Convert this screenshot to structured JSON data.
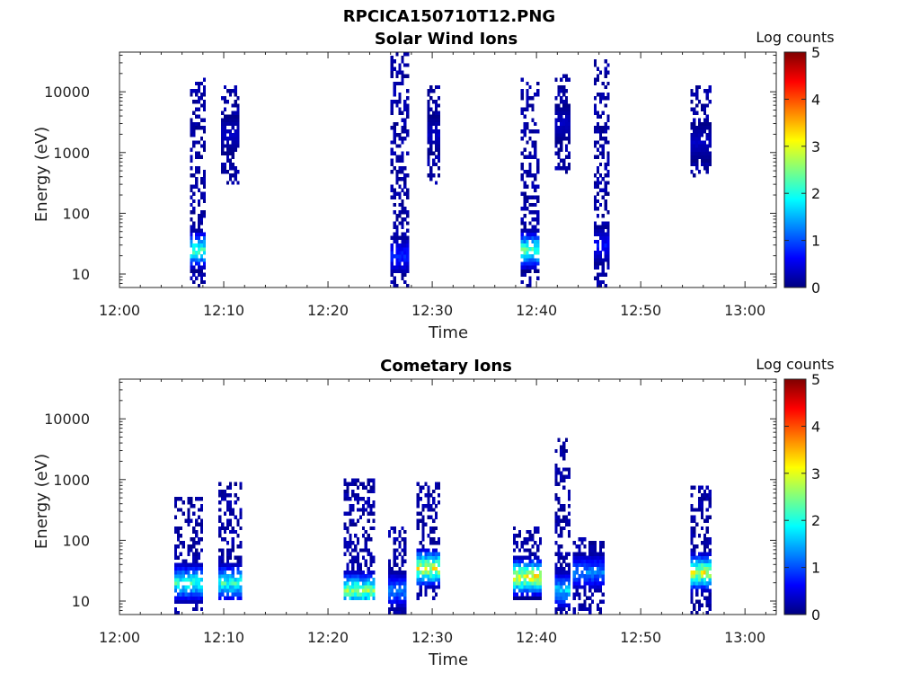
{
  "figure_title": "RPCICA150710T12.PNG",
  "colorbar": {
    "label": "Log counts",
    "min": 0,
    "max": 5,
    "ticks": [
      "0",
      "1",
      "2",
      "3",
      "4",
      "5"
    ],
    "colormap": "jet"
  },
  "chart_data": [
    {
      "type": "heatmap",
      "title": "Solar Wind Ions",
      "xlabel": "Time",
      "ylabel": "Energy (eV)",
      "y_scale": "log",
      "ylim": [
        6,
        45000
      ],
      "xlim": [
        "12:00",
        "13:03"
      ],
      "x_ticks": [
        "12:00",
        "12:10",
        "12:20",
        "12:30",
        "12:40",
        "12:50",
        "13:00"
      ],
      "y_ticks": [
        "10",
        "100",
        "1000",
        "10000"
      ],
      "bursts": [
        {
          "start": "12:06:45",
          "end": "12:08:15",
          "emin": 6,
          "emax": 16000,
          "peak_log_counts": 2.6,
          "peak_energy": 25
        },
        {
          "start": "12:09:45",
          "end": "12:11:30",
          "emin": 300,
          "emax": 12000,
          "peak_log_counts": 0.4,
          "peak_energy": 2000
        },
        {
          "start": "12:26:00",
          "end": "12:27:45",
          "emin": 6,
          "emax": 40000,
          "peak_log_counts": 1.0,
          "peak_energy": 20
        },
        {
          "start": "12:29:30",
          "end": "12:30:45",
          "emin": 300,
          "emax": 12000,
          "peak_log_counts": 0.4,
          "peak_energy": 2000
        },
        {
          "start": "12:38:30",
          "end": "12:40:15",
          "emin": 6,
          "emax": 16000,
          "peak_log_counts": 2.7,
          "peak_energy": 25
        },
        {
          "start": "12:41:45",
          "end": "12:43:15",
          "emin": 500,
          "emax": 18000,
          "peak_log_counts": 0.4,
          "peak_energy": 3000
        },
        {
          "start": "12:45:30",
          "end": "12:47:00",
          "emin": 6,
          "emax": 30000,
          "peak_log_counts": 0.8,
          "peak_energy": 30
        },
        {
          "start": "12:54:45",
          "end": "12:56:45",
          "emin": 400,
          "emax": 12000,
          "peak_log_counts": 0.4,
          "peak_energy": 1500
        }
      ]
    },
    {
      "type": "heatmap",
      "title": "Cometary Ions",
      "xlabel": "Time",
      "ylabel": "Energy (eV)",
      "y_scale": "log",
      "ylim": [
        6,
        45000
      ],
      "xlim": [
        "12:00",
        "13:03"
      ],
      "x_ticks": [
        "12:00",
        "12:10",
        "12:20",
        "12:30",
        "12:40",
        "12:50",
        "13:00"
      ],
      "y_ticks": [
        "10",
        "100",
        "1000",
        "10000"
      ],
      "bursts": [
        {
          "start": "12:05:15",
          "end": "12:08:00",
          "emin": 6,
          "emax": 500,
          "peak_log_counts": 2.5,
          "peak_energy": 20
        },
        {
          "start": "12:09:30",
          "end": "12:11:45",
          "emin": 12,
          "emax": 800,
          "peak_log_counts": 2.5,
          "peak_energy": 20
        },
        {
          "start": "12:21:30",
          "end": "12:24:30",
          "emin": 12,
          "emax": 1000,
          "peak_log_counts": 3.0,
          "peak_energy": 15
        },
        {
          "start": "12:25:45",
          "end": "12:27:30",
          "emin": 6,
          "emax": 150,
          "peak_log_counts": 1.5,
          "peak_energy": 15
        },
        {
          "start": "12:28:30",
          "end": "12:30:45",
          "emin": 12,
          "emax": 800,
          "peak_log_counts": 3.5,
          "peak_energy": 35
        },
        {
          "start": "12:37:45",
          "end": "12:40:30",
          "emin": 12,
          "emax": 150,
          "peak_log_counts": 3.6,
          "peak_energy": 25
        },
        {
          "start": "12:41:45",
          "end": "12:43:15",
          "emin": 6,
          "emax": 5000,
          "peak_log_counts": 2.0,
          "peak_energy": 15
        },
        {
          "start": "12:43:30",
          "end": "12:46:30",
          "emin": 6,
          "emax": 100,
          "peak_log_counts": 1.5,
          "peak_energy": 30
        },
        {
          "start": "12:54:45",
          "end": "12:56:45",
          "emin": 6,
          "emax": 700,
          "peak_log_counts": 3.5,
          "peak_energy": 30
        }
      ]
    }
  ]
}
